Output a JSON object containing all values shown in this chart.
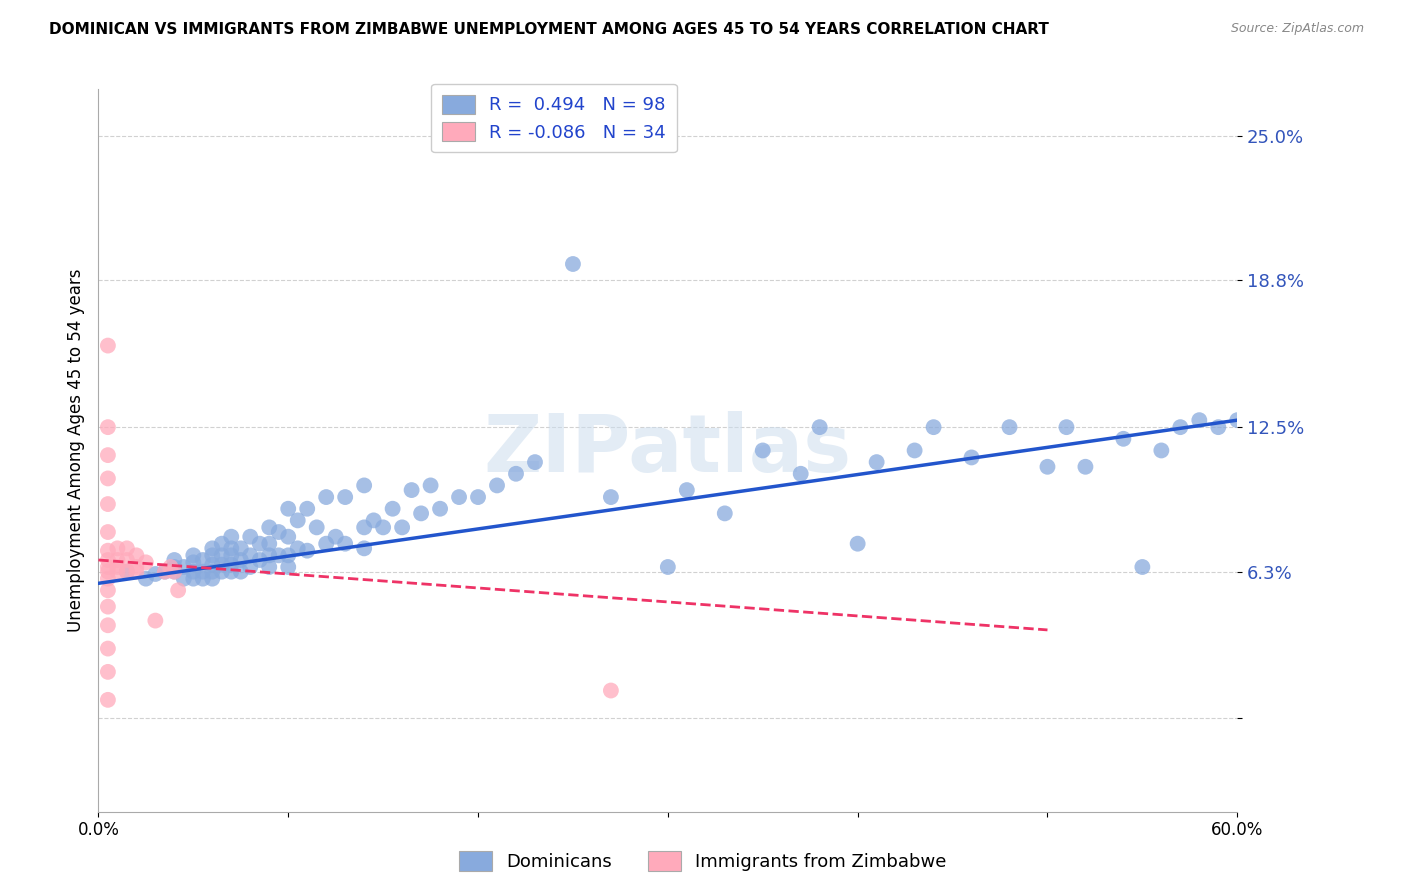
{
  "title": "DOMINICAN VS IMMIGRANTS FROM ZIMBABWE UNEMPLOYMENT AMONG AGES 45 TO 54 YEARS CORRELATION CHART",
  "source": "Source: ZipAtlas.com",
  "ylabel": "Unemployment Among Ages 45 to 54 years",
  "xlim": [
    0.0,
    0.6
  ],
  "ylim": [
    -0.04,
    0.27
  ],
  "yticks": [
    0.0,
    0.063,
    0.125,
    0.188,
    0.25
  ],
  "ytick_labels": [
    "",
    "6.3%",
    "12.5%",
    "18.8%",
    "25.0%"
  ],
  "xticks": [
    0.0,
    0.1,
    0.2,
    0.3,
    0.4,
    0.5,
    0.6
  ],
  "xtick_labels": [
    "0.0%",
    "",
    "",
    "",
    "",
    "",
    "60.0%"
  ],
  "blue_R": 0.494,
  "blue_N": 98,
  "pink_R": -0.086,
  "pink_N": 34,
  "blue_color": "#88aadd",
  "pink_color": "#ffaabb",
  "blue_line_color": "#2255cc",
  "pink_line_color": "#ee3366",
  "watermark": "ZIPatlas",
  "legend_labels": [
    "Dominicans",
    "Immigrants from Zimbabwe"
  ],
  "blue_scatter_x": [
    0.015,
    0.025,
    0.03,
    0.035,
    0.04,
    0.04,
    0.04,
    0.045,
    0.045,
    0.05,
    0.05,
    0.05,
    0.05,
    0.055,
    0.055,
    0.055,
    0.06,
    0.06,
    0.06,
    0.06,
    0.06,
    0.065,
    0.065,
    0.065,
    0.065,
    0.07,
    0.07,
    0.07,
    0.07,
    0.07,
    0.075,
    0.075,
    0.075,
    0.08,
    0.08,
    0.08,
    0.085,
    0.085,
    0.09,
    0.09,
    0.09,
    0.09,
    0.095,
    0.095,
    0.1,
    0.1,
    0.1,
    0.1,
    0.105,
    0.105,
    0.11,
    0.11,
    0.115,
    0.12,
    0.12,
    0.125,
    0.13,
    0.13,
    0.14,
    0.14,
    0.14,
    0.145,
    0.15,
    0.155,
    0.16,
    0.165,
    0.17,
    0.175,
    0.18,
    0.19,
    0.2,
    0.21,
    0.22,
    0.23,
    0.25,
    0.27,
    0.3,
    0.31,
    0.33,
    0.35,
    0.37,
    0.38,
    0.4,
    0.41,
    0.43,
    0.44,
    0.46,
    0.48,
    0.5,
    0.51,
    0.52,
    0.54,
    0.55,
    0.56,
    0.57,
    0.58,
    0.59,
    0.6
  ],
  "blue_scatter_y": [
    0.063,
    0.06,
    0.062,
    0.063,
    0.063,
    0.065,
    0.068,
    0.06,
    0.065,
    0.06,
    0.063,
    0.067,
    0.07,
    0.06,
    0.063,
    0.068,
    0.06,
    0.063,
    0.066,
    0.07,
    0.073,
    0.063,
    0.066,
    0.07,
    0.075,
    0.063,
    0.066,
    0.07,
    0.073,
    0.078,
    0.063,
    0.068,
    0.073,
    0.065,
    0.07,
    0.078,
    0.068,
    0.075,
    0.065,
    0.07,
    0.075,
    0.082,
    0.07,
    0.08,
    0.065,
    0.07,
    0.078,
    0.09,
    0.073,
    0.085,
    0.072,
    0.09,
    0.082,
    0.075,
    0.095,
    0.078,
    0.075,
    0.095,
    0.073,
    0.082,
    0.1,
    0.085,
    0.082,
    0.09,
    0.082,
    0.098,
    0.088,
    0.1,
    0.09,
    0.095,
    0.095,
    0.1,
    0.105,
    0.11,
    0.195,
    0.095,
    0.065,
    0.098,
    0.088,
    0.115,
    0.105,
    0.125,
    0.075,
    0.11,
    0.115,
    0.125,
    0.112,
    0.125,
    0.108,
    0.125,
    0.108,
    0.12,
    0.065,
    0.115,
    0.125,
    0.128,
    0.125,
    0.128
  ],
  "pink_scatter_x": [
    0.005,
    0.005,
    0.005,
    0.005,
    0.005,
    0.005,
    0.005,
    0.005,
    0.005,
    0.005,
    0.005,
    0.005,
    0.005,
    0.005,
    0.005,
    0.005,
    0.005,
    0.01,
    0.01,
    0.01,
    0.01,
    0.015,
    0.015,
    0.015,
    0.02,
    0.02,
    0.02,
    0.025,
    0.03,
    0.035,
    0.038,
    0.04,
    0.042,
    0.27
  ],
  "pink_scatter_y": [
    0.16,
    0.125,
    0.113,
    0.103,
    0.092,
    0.08,
    0.072,
    0.068,
    0.065,
    0.063,
    0.06,
    0.055,
    0.048,
    0.04,
    0.03,
    0.02,
    0.008,
    0.063,
    0.065,
    0.068,
    0.073,
    0.063,
    0.068,
    0.073,
    0.063,
    0.065,
    0.07,
    0.067,
    0.042,
    0.063,
    0.065,
    0.063,
    0.055,
    0.012
  ],
  "blue_line_x": [
    0.0,
    0.6
  ],
  "blue_line_y": [
    0.058,
    0.128
  ],
  "pink_line_x": [
    0.0,
    0.5
  ],
  "pink_line_y": [
    0.068,
    0.038
  ]
}
